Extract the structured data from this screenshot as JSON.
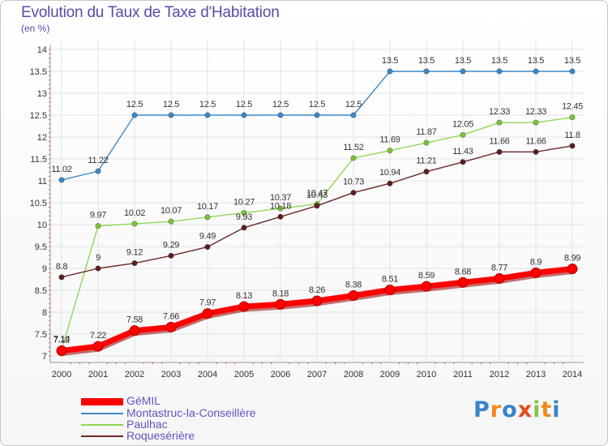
{
  "title": "Evolution du Taux de Taxe d'Habitation",
  "subtitle": "(en %)",
  "logo": {
    "text": "Proxiti",
    "colors": [
      "#3b83c7",
      "#f08a1c",
      "#3b83c7",
      "#e84a1c",
      "#8bc34a",
      "#f08a1c",
      "#3b83c7"
    ]
  },
  "chart_data": {
    "type": "line",
    "title": "Evolution du Taux de Taxe d'Habitation",
    "ylabel": "(en %)",
    "xlabel": "",
    "x": [
      "2000",
      "2001",
      "2002",
      "2003",
      "2004",
      "2005",
      "2006",
      "2007",
      "2008",
      "2009",
      "2010",
      "2011",
      "2012",
      "2013",
      "2014"
    ],
    "ylim": [
      7,
      14
    ],
    "yticks": [
      "7",
      "7.5",
      "8",
      "8.5",
      "9",
      "9.5",
      "10",
      "10.5",
      "11",
      "11.5",
      "12",
      "12.5",
      "13",
      "13.5",
      "14"
    ],
    "grid": true,
    "legend_position": "bottom-left",
    "series": [
      {
        "name": "GéMIL",
        "color": "#ff0000",
        "marker": "#ff0000",
        "values": [
          7.12,
          7.22,
          7.58,
          7.66,
          7.97,
          8.13,
          8.18,
          8.26,
          8.38,
          8.51,
          8.59,
          8.68,
          8.77,
          8.9,
          8.99
        ],
        "labels": [
          "7.12",
          "7.22",
          "7.58",
          "7.66",
          "7.97",
          "8.13",
          "8.18",
          "8.26",
          "8.38",
          "8.51",
          "8.59",
          "8.68",
          "8.77",
          "8.9",
          "8.99"
        ]
      },
      {
        "name": "Montastruc-la-Conseillère",
        "color": "#3d89c8",
        "marker": "#3d89c8",
        "values": [
          11.02,
          11.22,
          12.5,
          12.5,
          12.5,
          12.5,
          12.5,
          12.5,
          12.5,
          13.5,
          13.5,
          13.5,
          13.5,
          13.5,
          13.5
        ],
        "labels": [
          "11.02",
          "11.22",
          "12.5",
          "12.5",
          "12.5",
          "12.5",
          "12.5",
          "12.5",
          "12.5",
          "13.5",
          "13.5",
          "13.5",
          "13.5",
          "13.5",
          "13.5"
        ]
      },
      {
        "name": "Paulhac",
        "color": "#90d858",
        "marker": "#7cc43a",
        "values": [
          7.14,
          9.97,
          10.02,
          10.07,
          10.17,
          10.27,
          10.37,
          10.47,
          11.52,
          11.69,
          11.87,
          12.05,
          12.33,
          12.33,
          12.45
        ],
        "labels": [
          "7.14",
          "9.97",
          "10.02",
          "10.07",
          "10.17",
          "10.27",
          "10.37",
          "10.47",
          "11.52",
          "11.69",
          "11.87",
          "12.05",
          "12.33",
          "12.33",
          "12.45"
        ]
      },
      {
        "name": "Roquesérière",
        "color": "#6b2a2a",
        "marker": "#5a1f1f",
        "values": [
          8.8,
          9,
          9.12,
          9.29,
          9.49,
          9.93,
          10.18,
          10.43,
          10.73,
          10.94,
          11.21,
          11.43,
          11.66,
          11.66,
          11.8
        ],
        "labels": [
          "8.8",
          "9",
          "9.12",
          "9.29",
          "9.49",
          "9.93",
          "10.18",
          "10.43",
          "10.73",
          "10.94",
          "11.21",
          "11.43",
          "11.66",
          "11.66",
          "11.8"
        ]
      }
    ]
  }
}
